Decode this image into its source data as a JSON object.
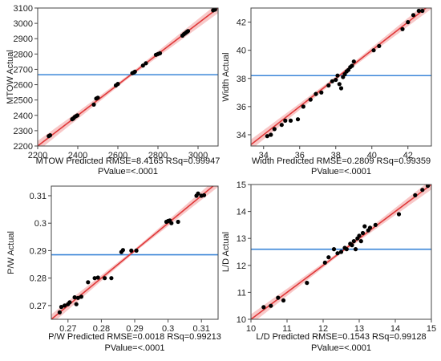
{
  "chart_data": [
    {
      "type": "scatter",
      "ylabel": "MTOW Actual",
      "caption_line1": "MTOW Predicted RMSE=8.4165 RSq=0.99947",
      "caption_line2": "PValue=<.0001",
      "xlim": [
        2200,
        3100
      ],
      "ylim": [
        2200,
        3100
      ],
      "xticks": [
        2200,
        2400,
        2600,
        2800,
        3000
      ],
      "yticks": [
        2200,
        2300,
        2400,
        2500,
        2600,
        2700,
        2800,
        2900,
        3000,
        3100
      ],
      "mean_line": 2665,
      "colors": {
        "fit": "#e0393a",
        "band": "#f5b5b5",
        "mean": "#3b86d8",
        "points": "#000000"
      },
      "points": [
        [
          2255,
          2265
        ],
        [
          2262,
          2270
        ],
        [
          2372,
          2375
        ],
        [
          2378,
          2380
        ],
        [
          2385,
          2390
        ],
        [
          2392,
          2395
        ],
        [
          2398,
          2400
        ],
        [
          2480,
          2470
        ],
        [
          2492,
          2510
        ],
        [
          2500,
          2515
        ],
        [
          2590,
          2595
        ],
        [
          2600,
          2605
        ],
        [
          2672,
          2675
        ],
        [
          2680,
          2680
        ],
        [
          2685,
          2685
        ],
        [
          2725,
          2725
        ],
        [
          2740,
          2740
        ],
        [
          2790,
          2795
        ],
        [
          2800,
          2800
        ],
        [
          2810,
          2805
        ],
        [
          2922,
          2920
        ],
        [
          2930,
          2930
        ],
        [
          2938,
          2938
        ],
        [
          2945,
          2945
        ],
        [
          2950,
          2950
        ],
        [
          3075,
          3085
        ],
        [
          3085,
          3090
        ]
      ]
    },
    {
      "type": "scatter",
      "ylabel": "Width Actual",
      "caption_line1": "Width Predicted RMSE=0.2809 RSq=0.99359",
      "caption_line2": "PValue=<.0001",
      "xlim": [
        33.3,
        43.3
      ],
      "ylim": [
        33.2,
        43
      ],
      "xticks": [
        34,
        36,
        38,
        40,
        42
      ],
      "yticks": [
        34,
        36,
        38,
        40,
        42
      ],
      "mean_line": 38.2,
      "colors": {
        "fit": "#e0393a",
        "band": "#f5b5b5",
        "mean": "#3b86d8",
        "points": "#000000"
      },
      "points": [
        [
          34.2,
          33.9
        ],
        [
          34.4,
          34.0
        ],
        [
          34.6,
          34.4
        ],
        [
          35.0,
          34.7
        ],
        [
          35.2,
          35.0
        ],
        [
          35.5,
          35.0
        ],
        [
          35.9,
          35.1
        ],
        [
          36.2,
          36.0
        ],
        [
          36.6,
          36.5
        ],
        [
          36.9,
          36.9
        ],
        [
          37.2,
          37.0
        ],
        [
          37.6,
          37.5
        ],
        [
          37.8,
          37.8
        ],
        [
          38.0,
          37.9
        ],
        [
          38.1,
          38.2
        ],
        [
          38.2,
          37.6
        ],
        [
          38.3,
          37.3
        ],
        [
          38.4,
          38.1
        ],
        [
          38.5,
          38.3
        ],
        [
          38.6,
          38.5
        ],
        [
          38.7,
          38.6
        ],
        [
          38.8,
          38.8
        ],
        [
          38.9,
          38.9
        ],
        [
          39.0,
          39.2
        ],
        [
          40.1,
          40.0
        ],
        [
          40.4,
          40.3
        ],
        [
          41.7,
          41.5
        ],
        [
          42.0,
          42.0
        ],
        [
          42.3,
          42.5
        ],
        [
          42.6,
          42.8
        ],
        [
          42.8,
          42.8
        ]
      ]
    },
    {
      "type": "scatter",
      "ylabel": "P/W Actual",
      "caption_line1": "P/W Predicted RMSE=0.0018 RSq=0.99213",
      "caption_line2": "PValue=<.0001",
      "xlim": [
        0.265,
        0.315
      ],
      "ylim": [
        0.265,
        0.3135
      ],
      "xticks": [
        0.27,
        0.28,
        0.29,
        0.3,
        0.31
      ],
      "yticks": [
        0.27,
        0.28,
        0.29,
        0.3,
        0.31
      ],
      "mean_line": 0.2885,
      "colors": {
        "fit": "#e0393a",
        "band": "#f5b5b5",
        "mean": "#3b86d8",
        "points": "#000000"
      },
      "points": [
        [
          0.2675,
          0.2675
        ],
        [
          0.268,
          0.2695
        ],
        [
          0.269,
          0.27
        ],
        [
          0.27,
          0.2705
        ],
        [
          0.2705,
          0.2712
        ],
        [
          0.272,
          0.273
        ],
        [
          0.2725,
          0.2705
        ],
        [
          0.273,
          0.2728
        ],
        [
          0.274,
          0.2732
        ],
        [
          0.276,
          0.2785
        ],
        [
          0.278,
          0.28
        ],
        [
          0.279,
          0.2802
        ],
        [
          0.281,
          0.28
        ],
        [
          0.283,
          0.28
        ],
        [
          0.286,
          0.2895
        ],
        [
          0.2865,
          0.2902
        ],
        [
          0.289,
          0.29
        ],
        [
          0.2905,
          0.29
        ],
        [
          0.2995,
          0.3005
        ],
        [
          0.3,
          0.3008
        ],
        [
          0.3005,
          0.301
        ],
        [
          0.301,
          0.3
        ],
        [
          0.303,
          0.3005
        ],
        [
          0.3085,
          0.31
        ],
        [
          0.309,
          0.3108
        ],
        [
          0.31,
          0.31
        ],
        [
          0.3108,
          0.3102
        ]
      ]
    },
    {
      "type": "scatter",
      "ylabel": "L/D Actual",
      "caption_line1": "L/D Predicted RMSE=0.1543 RSq=0.99128",
      "caption_line2": "PValue=<.0001",
      "xlim": [
        10,
        15
      ],
      "ylim": [
        10,
        15
      ],
      "xticks": [
        10,
        11,
        12,
        13,
        14,
        15
      ],
      "yticks": [
        10,
        11,
        12,
        13,
        14,
        15
      ],
      "mean_line": 12.6,
      "colors": {
        "fit": "#e0393a",
        "band": "#f5b5b5",
        "mean": "#3b86d8",
        "points": "#000000"
      },
      "points": [
        [
          10.35,
          10.45
        ],
        [
          10.55,
          10.5
        ],
        [
          10.75,
          10.8
        ],
        [
          10.9,
          10.7
        ],
        [
          11.55,
          11.35
        ],
        [
          12.05,
          12.1
        ],
        [
          12.15,
          12.3
        ],
        [
          12.3,
          12.6
        ],
        [
          12.4,
          12.45
        ],
        [
          12.5,
          12.5
        ],
        [
          12.6,
          12.65
        ],
        [
          12.65,
          12.6
        ],
        [
          12.75,
          12.8
        ],
        [
          12.8,
          12.75
        ],
        [
          12.85,
          12.9
        ],
        [
          12.9,
          12.6
        ],
        [
          12.95,
          13.0
        ],
        [
          13.0,
          13.1
        ],
        [
          13.05,
          12.9
        ],
        [
          13.1,
          13.2
        ],
        [
          13.15,
          13.45
        ],
        [
          13.25,
          13.3
        ],
        [
          13.3,
          13.4
        ],
        [
          13.45,
          13.5
        ],
        [
          14.1,
          13.9
        ],
        [
          14.55,
          14.6
        ],
        [
          14.75,
          14.8
        ],
        [
          14.9,
          14.95
        ]
      ]
    }
  ]
}
